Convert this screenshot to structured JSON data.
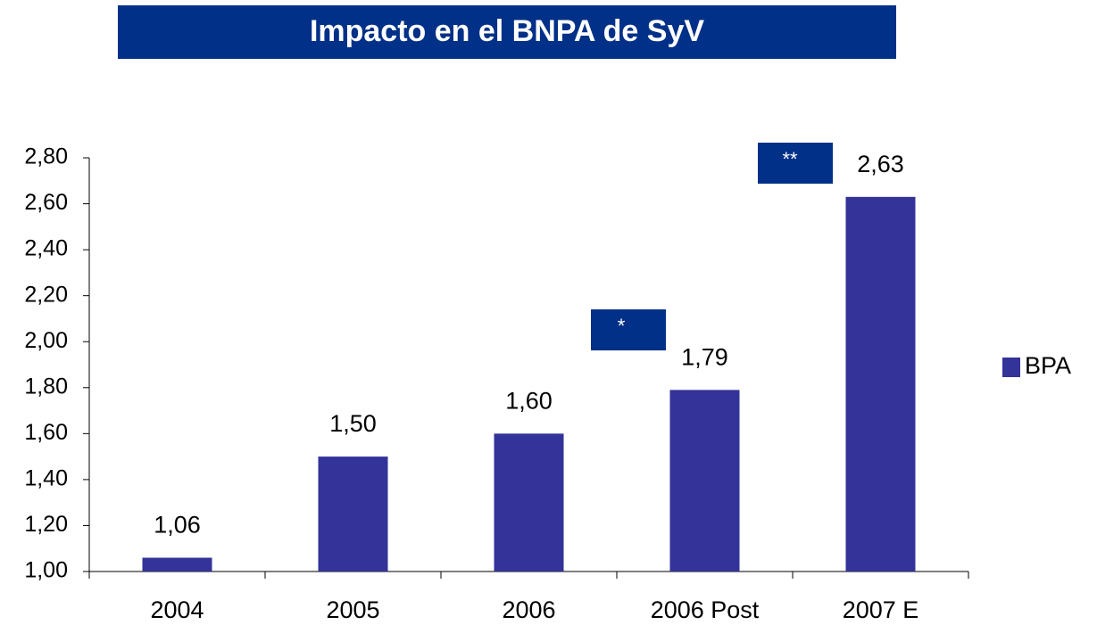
{
  "chart_data": {
    "type": "bar",
    "title": "Impacto en el BNPA de SyV",
    "categories": [
      "2004",
      "2005",
      "2006",
      "2006 Post",
      "2007 E"
    ],
    "series": [
      {
        "name": "BPA",
        "color": "#333399",
        "values": [
          1.06,
          1.5,
          1.6,
          1.79,
          2.63
        ],
        "value_labels": [
          "1,06",
          "1,50",
          "1,60",
          "1,79",
          "2,63"
        ]
      }
    ],
    "ylim": [
      1.0,
      2.8
    ],
    "yticks": [
      {
        "value": 1.0,
        "label": "1,00"
      },
      {
        "value": 1.2,
        "label": "1,20"
      },
      {
        "value": 1.4,
        "label": "1,40"
      },
      {
        "value": 1.6,
        "label": "1,60"
      },
      {
        "value": 1.8,
        "label": "1,80"
      },
      {
        "value": 2.0,
        "label": "2,00"
      },
      {
        "value": 2.2,
        "label": "2,20"
      },
      {
        "value": 2.4,
        "label": "2,40"
      },
      {
        "value": 2.6,
        "label": "2,60"
      },
      {
        "value": 2.8,
        "label": "2,80"
      }
    ],
    "annotations": [
      "*",
      "**"
    ],
    "legend": "right"
  }
}
